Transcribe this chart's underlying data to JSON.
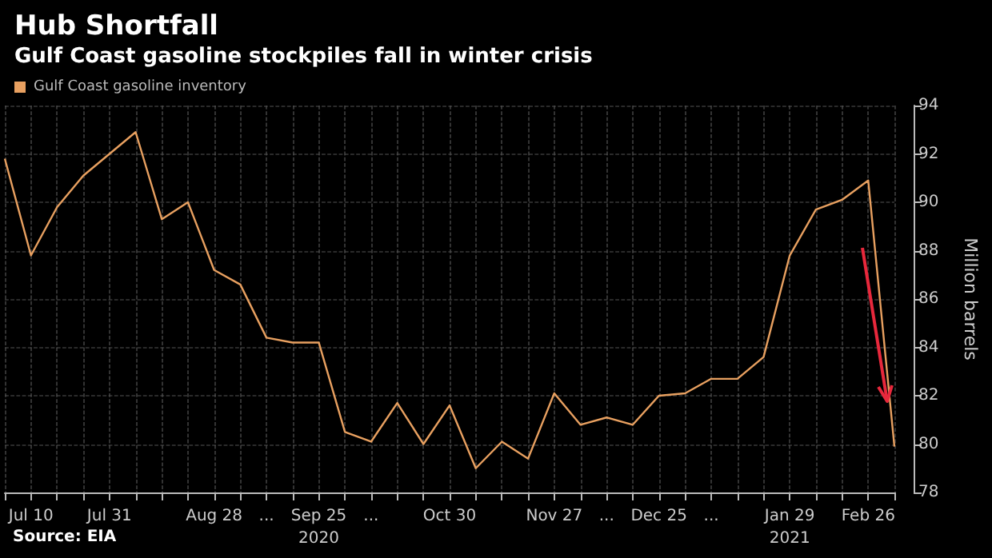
{
  "chart_data": {
    "type": "line",
    "title": "Hub Shortfall",
    "subtitle": "Gulf Coast gasoline stockpiles fall in winter crisis",
    "y2label": "Million barrels",
    "categories": [
      null,
      "Jul 10",
      null,
      null,
      "Jul 31",
      null,
      null,
      null,
      "Aug 28",
      null,
      "...",
      null,
      "Sep 25\n2020",
      null,
      "...",
      null,
      null,
      "Oct 30",
      null,
      null,
      null,
      "Nov 27",
      null,
      "...",
      null,
      "Dec 25",
      null,
      "...",
      null,
      null,
      "Jan 29\n2021",
      null,
      null,
      "Feb 26",
      null
    ],
    "series": [
      {
        "name": "Gulf Coast gasoline inventory",
        "color": "#e8a060",
        "axis": "y2",
        "values": [
          91.8,
          87.8,
          89.8,
          91.1,
          92.0,
          92.9,
          89.3,
          90.0,
          87.2,
          86.6,
          84.4,
          84.2,
          84.2,
          80.5,
          80.1,
          81.7,
          80.0,
          81.6,
          79.0,
          80.1,
          79.4,
          82.1,
          80.8,
          81.1,
          80.8,
          82.0,
          82.1,
          82.7,
          82.7,
          83.6,
          87.8,
          89.7,
          90.1,
          90.9,
          79.9
        ]
      }
    ],
    "y2lim": [
      78,
      94
    ],
    "y2ticks": [
      78,
      80,
      82,
      84,
      86,
      88,
      90,
      92,
      94
    ],
    "grid": true,
    "legend": "top left",
    "marker": "none",
    "line_style": "solid",
    "annotations": [
      "Source: EIA"
    ]
  }
}
